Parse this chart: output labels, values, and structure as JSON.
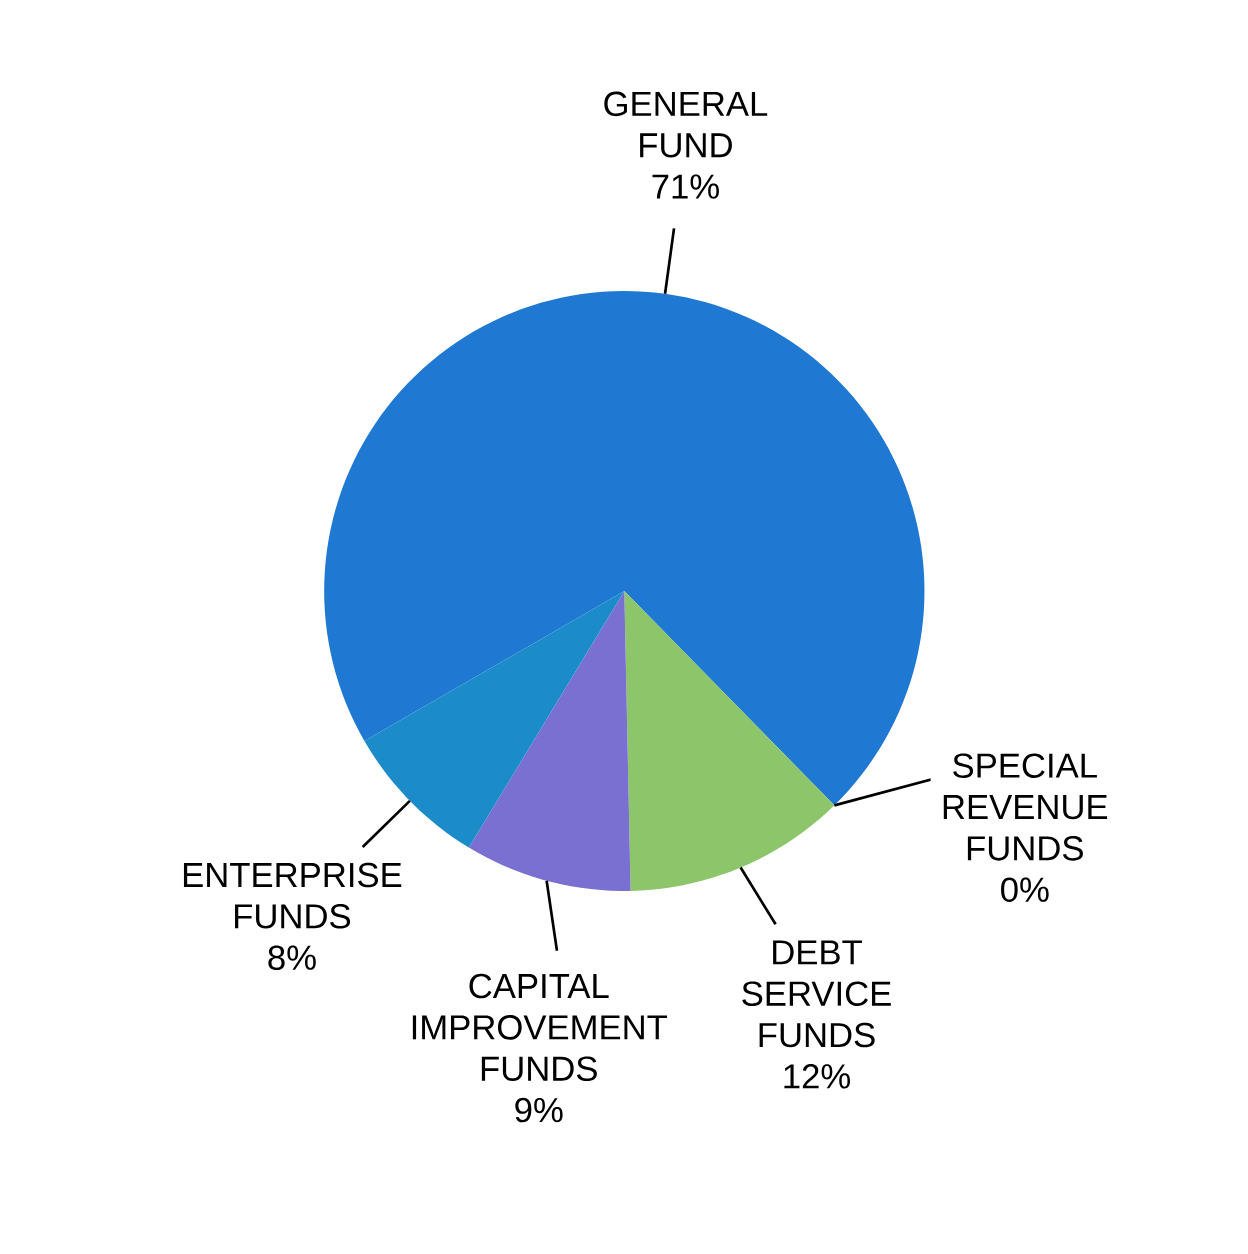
{
  "chart_data": {
    "type": "pie",
    "categories": [
      "GENERAL FUND",
      "SPECIAL REVENUE FUNDS",
      "DEBT SERVICE FUNDS",
      "CAPITAL IMPROVEMENT FUNDS",
      "ENTERPRISE FUNDS"
    ],
    "values": [
      71,
      0,
      12,
      9,
      8
    ],
    "value_labels": [
      "71%",
      "0%",
      "12%",
      "9%",
      "8%"
    ],
    "colors": [
      "#1f78d1",
      "#2a8fd6",
      "#8cc56a",
      "#7a70d2",
      "#1b8cc9"
    ]
  }
}
